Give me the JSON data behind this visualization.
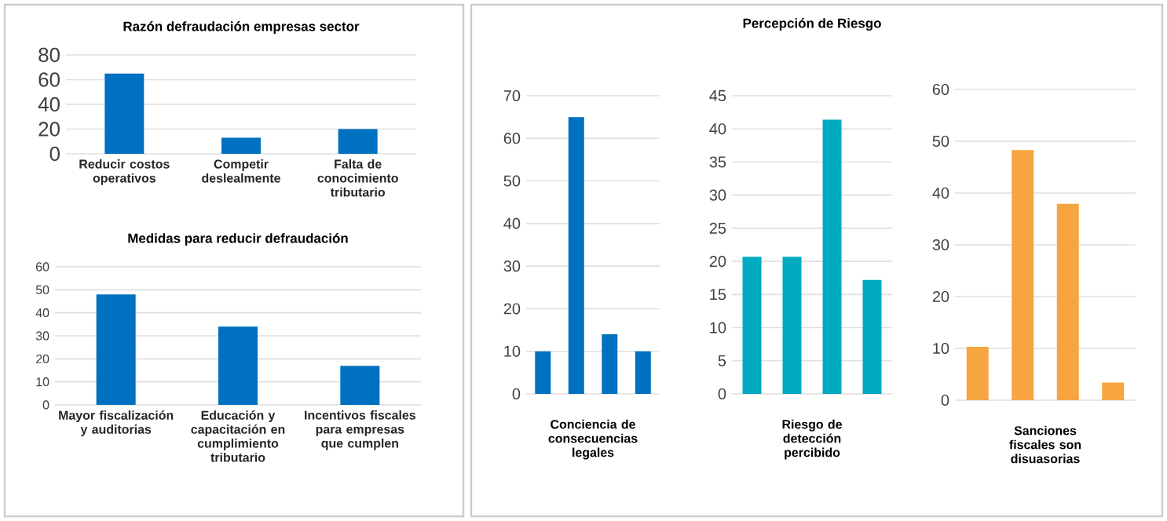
{
  "chart_data": [
    {
      "type": "bar",
      "title": "Razón defraudación empresas sector",
      "categories": [
        "Reducir costos operativos",
        "Competir deslealmente",
        "Falta de conocimiento tributario"
      ],
      "values": [
        65,
        13,
        20
      ],
      "color": "#0070c0",
      "ylim": [
        0,
        80
      ],
      "yticks": [
        0,
        20,
        40,
        60,
        80
      ],
      "grid": "y"
    },
    {
      "type": "bar",
      "title": "Medidas para reducir defraudación",
      "categories": [
        "Mayor fiscalización y auditorias",
        "Educación y capacitación en cumplimiento tributario",
        "Incentivos fiscales para empresas que cumplen"
      ],
      "values": [
        48,
        34,
        17
      ],
      "color": "#0070c0",
      "ylim": [
        0,
        60
      ],
      "yticks": [
        0,
        10,
        20,
        30,
        40,
        50,
        60
      ],
      "grid": "y"
    },
    {
      "type": "bar",
      "xlabel": "Conciencia de consecuencias legales",
      "categories": [
        null,
        null,
        null,
        null
      ],
      "values": [
        10,
        65,
        14,
        10
      ],
      "color": "#0070c0",
      "ylim": [
        0,
        70
      ],
      "yticks": [
        0,
        10,
        20,
        30,
        40,
        50,
        60,
        70
      ],
      "grid": "y"
    },
    {
      "type": "bar",
      "title": "Percepción de Riesgo",
      "xlabel": "Riesgo de detección percibido",
      "categories": [
        null,
        null,
        null,
        null
      ],
      "values": [
        20.7,
        20.7,
        41.4,
        17.2
      ],
      "color": "#00aac0",
      "ylim": [
        0,
        45
      ],
      "yticks": [
        0,
        5,
        10,
        15,
        20,
        25,
        30,
        35,
        40,
        45
      ],
      "grid": "y"
    },
    {
      "type": "bar",
      "xlabel": "Sanciones fiscales son disuasorias",
      "categories": [
        null,
        null,
        null,
        null
      ],
      "values": [
        10.3,
        48.3,
        37.9,
        3.4
      ],
      "color": "#f7a541",
      "ylim": [
        0,
        60
      ],
      "yticks": [
        0,
        10,
        20,
        30,
        40,
        50,
        60
      ],
      "grid": "y"
    }
  ]
}
